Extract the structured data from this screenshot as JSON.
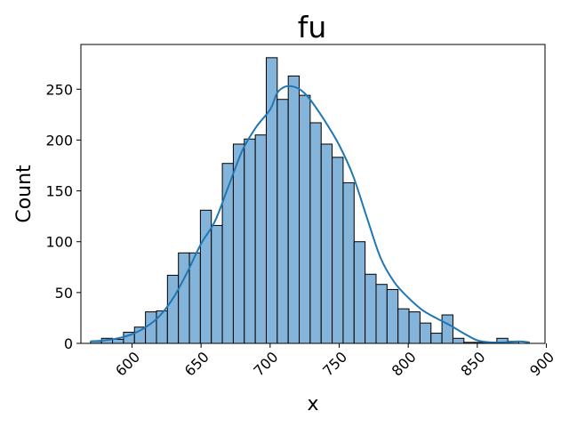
{
  "chart_data": {
    "type": "bar",
    "subtype": "histogram-with-kde",
    "title": "fu",
    "xlabel": "x",
    "ylabel": "Count",
    "xlim": [
      563,
      899
    ],
    "ylim": [
      0,
      294
    ],
    "x_ticks": [
      600,
      650,
      700,
      750,
      800,
      850,
      900
    ],
    "y_ticks": [
      0,
      50,
      100,
      150,
      200,
      250
    ],
    "x_tick_rotation_deg": 45,
    "bin_width": 7.95,
    "bin_edges": [
      570.0,
      577.95,
      585.9,
      593.85,
      601.8,
      609.75,
      617.7,
      625.65,
      633.6,
      641.55,
      649.5,
      657.45,
      665.4,
      673.35,
      681.3,
      689.25,
      697.2,
      705.15,
      713.1,
      721.05,
      729.0,
      736.95,
      744.9,
      752.85,
      760.8,
      768.75,
      776.7,
      784.65,
      792.6,
      800.55,
      808.5,
      816.45,
      824.4,
      832.35,
      840.3,
      848.25,
      856.2,
      864.15,
      872.1,
      880.05,
      888.0
    ],
    "values": [
      2,
      5,
      4,
      11,
      16,
      31,
      32,
      67,
      89,
      89,
      131,
      116,
      177,
      196,
      201,
      205,
      281,
      240,
      263,
      244,
      217,
      196,
      183,
      158,
      100,
      68,
      58,
      53,
      34,
      31,
      20,
      10,
      28,
      5,
      1,
      1,
      1,
      5,
      2,
      0
    ],
    "kde": {
      "x": [
        570,
        580,
        590,
        600,
        610,
        620,
        630,
        640,
        650,
        660,
        670,
        680,
        690,
        700,
        705,
        710,
        715,
        720,
        725,
        730,
        740,
        750,
        760,
        770,
        780,
        790,
        800,
        810,
        820,
        830,
        840,
        850,
        860,
        870,
        880,
        888
      ],
      "y": [
        2,
        3,
        5,
        9,
        16,
        27,
        45,
        70,
        98,
        120,
        155,
        190,
        213,
        230,
        246,
        252,
        253,
        251,
        246,
        238,
        218,
        195,
        165,
        124,
        84,
        60,
        45,
        33,
        25,
        18,
        10,
        3,
        1,
        1,
        2,
        1
      ]
    },
    "colors": {
      "bar_fill": "#84b4d9",
      "bar_edge": "#000000",
      "kde_line": "#1f77b4"
    },
    "grid": false,
    "legend": "none"
  }
}
